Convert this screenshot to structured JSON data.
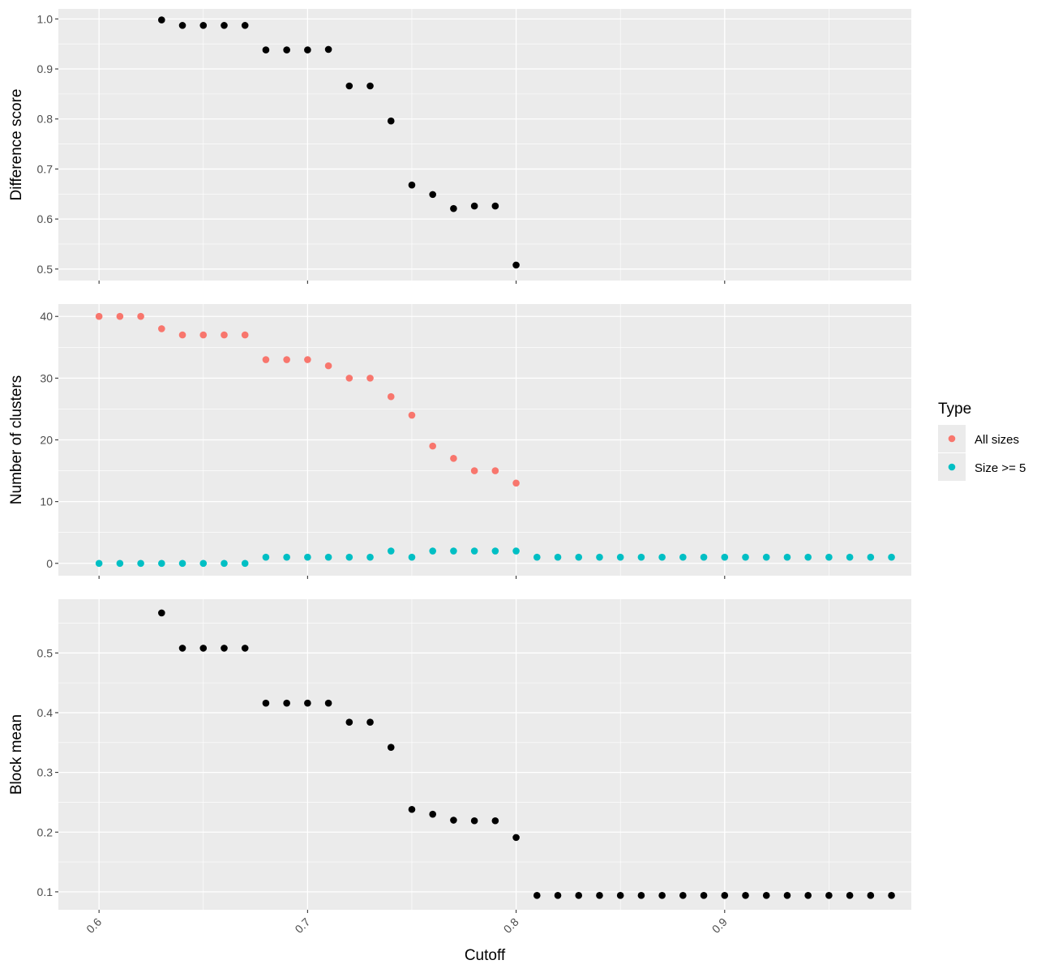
{
  "chart_data": {
    "type": "scatter",
    "xlabel": "Cutoff",
    "x_ticks": [
      0.6,
      0.7,
      0.8,
      0.9
    ],
    "x_tick_labels": [
      "0.6",
      "0.7",
      "0.8",
      "0.9"
    ],
    "xlim": [
      0.5805,
      0.9895
    ],
    "grid": true,
    "legend": {
      "title": "Type",
      "position": "right",
      "entries": [
        {
          "label": "All sizes",
          "color": "#F8766D"
        },
        {
          "label": "Size >= 5",
          "color": "#00BFC4"
        }
      ]
    },
    "panels": [
      {
        "ylabel": "Difference score",
        "ylim": [
          0.477,
          1.02
        ],
        "y_ticks": [
          0.5,
          0.6,
          0.7,
          0.8,
          0.9,
          1.0
        ],
        "y_tick_labels": [
          "0.5",
          "0.6",
          "0.7",
          "0.8",
          "0.9",
          "1.0"
        ],
        "series": [
          {
            "color": "#000000",
            "x": [
              0.63,
              0.64,
              0.65,
              0.66,
              0.67,
              0.68,
              0.69,
              0.7,
              0.71,
              0.72,
              0.73,
              0.74,
              0.75,
              0.76,
              0.77,
              0.78,
              0.79,
              0.8
            ],
            "y": [
              0.998,
              0.987,
              0.987,
              0.987,
              0.987,
              0.938,
              0.938,
              0.938,
              0.939,
              0.866,
              0.866,
              0.796,
              0.668,
              0.649,
              0.621,
              0.626,
              0.626,
              0.508
            ]
          }
        ]
      },
      {
        "ylabel": "Number of clusters",
        "ylim": [
          -2,
          42
        ],
        "y_ticks": [
          0,
          10,
          20,
          30,
          40
        ],
        "y_tick_labels": [
          "0",
          "10",
          "20",
          "30",
          "40"
        ],
        "series": [
          {
            "name": "All sizes",
            "color": "#F8766D",
            "x": [
              0.6,
              0.61,
              0.62,
              0.63,
              0.64,
              0.65,
              0.66,
              0.67,
              0.68,
              0.69,
              0.7,
              0.71,
              0.72,
              0.73,
              0.74,
              0.75,
              0.76,
              0.77,
              0.78,
              0.79,
              0.8
            ],
            "y": [
              40,
              40,
              40,
              38,
              37,
              37,
              37,
              37,
              33,
              33,
              33,
              32,
              30,
              30,
              27,
              24,
              19,
              17,
              15,
              15,
              13
            ]
          },
          {
            "name": "Size >= 5",
            "color": "#00BFC4",
            "x": [
              0.6,
              0.61,
              0.62,
              0.63,
              0.64,
              0.65,
              0.66,
              0.67,
              0.68,
              0.69,
              0.7,
              0.71,
              0.72,
              0.73,
              0.74,
              0.75,
              0.76,
              0.77,
              0.78,
              0.79,
              0.8,
              0.81,
              0.82,
              0.83,
              0.84,
              0.85,
              0.86,
              0.87,
              0.88,
              0.89,
              0.9,
              0.91,
              0.92,
              0.93,
              0.94,
              0.95,
              0.96,
              0.97,
              0.98
            ],
            "y": [
              0,
              0,
              0,
              0,
              0,
              0,
              0,
              0,
              1,
              1,
              1,
              1,
              1,
              1,
              2,
              1,
              2,
              2,
              2,
              2,
              2,
              1,
              1,
              1,
              1,
              1,
              1,
              1,
              1,
              1,
              1,
              1,
              1,
              1,
              1,
              1,
              1,
              1,
              1
            ]
          }
        ]
      },
      {
        "ylabel": "Block mean",
        "ylim": [
          0.07,
          0.59
        ],
        "y_ticks": [
          0.1,
          0.2,
          0.3,
          0.4,
          0.5
        ],
        "y_tick_labels": [
          "0.1",
          "0.2",
          "0.3",
          "0.4",
          "0.5"
        ],
        "series": [
          {
            "color": "#000000",
            "x": [
              0.63,
              0.64,
              0.65,
              0.66,
              0.67,
              0.68,
              0.69,
              0.7,
              0.71,
              0.72,
              0.73,
              0.74,
              0.75,
              0.76,
              0.77,
              0.78,
              0.79,
              0.8,
              0.81,
              0.82,
              0.83,
              0.84,
              0.85,
              0.86,
              0.87,
              0.88,
              0.89,
              0.9,
              0.91,
              0.92,
              0.93,
              0.94,
              0.95,
              0.96,
              0.97,
              0.98
            ],
            "y": [
              0.567,
              0.508,
              0.508,
              0.508,
              0.508,
              0.416,
              0.416,
              0.416,
              0.416,
              0.384,
              0.384,
              0.342,
              0.238,
              0.23,
              0.22,
              0.219,
              0.219,
              0.191,
              0.094,
              0.094,
              0.094,
              0.094,
              0.094,
              0.094,
              0.094,
              0.094,
              0.094,
              0.094,
              0.094,
              0.094,
              0.094,
              0.094,
              0.094,
              0.094,
              0.094,
              0.094
            ]
          }
        ]
      }
    ]
  }
}
